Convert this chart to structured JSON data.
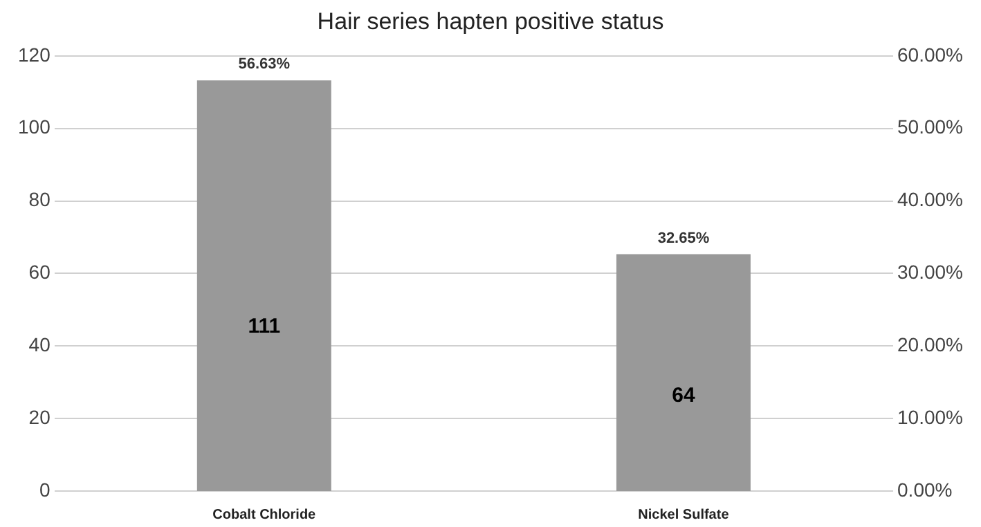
{
  "chart_data": {
    "type": "bar",
    "title": "Hair series hapten positive status",
    "categories": [
      "Cobalt Chloride",
      "Nickel Sulfate"
    ],
    "series": [
      {
        "color": "#999999",
        "axis": "y2",
        "values": [
          56.63,
          32.65
        ],
        "value_labels": [
          "56.63%",
          "32.65%"
        ]
      }
    ],
    "ylim": [
      0,
      120
    ],
    "yticks": [
      0,
      20,
      40,
      60,
      80,
      100,
      120
    ],
    "y2lim": [
      0,
      60
    ],
    "y2ticks": [
      {
        "value": 0,
        "label": "0.00%"
      },
      {
        "value": 10,
        "label": "10.00%"
      },
      {
        "value": 20,
        "label": "20.00%"
      },
      {
        "value": 30,
        "label": "30.00%"
      },
      {
        "value": 40,
        "label": "40.00%"
      },
      {
        "value": 50,
        "label": "50.00%"
      },
      {
        "value": 60,
        "label": "60.00%"
      }
    ],
    "annotations": [
      "111",
      "64"
    ],
    "grid": "y",
    "legend": false
  }
}
